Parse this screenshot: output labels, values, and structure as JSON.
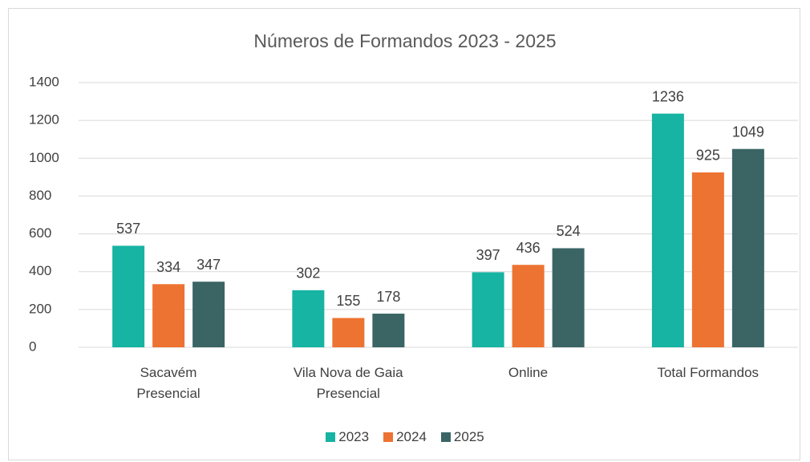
{
  "chart_data": {
    "type": "bar",
    "title": "Números de Formandos 2023 - 2025",
    "categories": [
      "Sacavém\nPresencial",
      "Vila Nova de Gaia\nPresencial",
      "Online",
      "Total Formandos"
    ],
    "series": [
      {
        "name": "2023",
        "color": "#17b3a3",
        "values": [
          537,
          302,
          397,
          1236
        ]
      },
      {
        "name": "2024",
        "color": "#ed7332",
        "values": [
          334,
          155,
          436,
          925
        ]
      },
      {
        "name": "2025",
        "color": "#3a6564",
        "values": [
          347,
          178,
          524,
          1049
        ]
      }
    ],
    "ylim": [
      0,
      1400
    ],
    "yticks": [
      0,
      200,
      400,
      600,
      800,
      1000,
      1200,
      1400
    ],
    "grid": true,
    "legend": "bottom"
  }
}
